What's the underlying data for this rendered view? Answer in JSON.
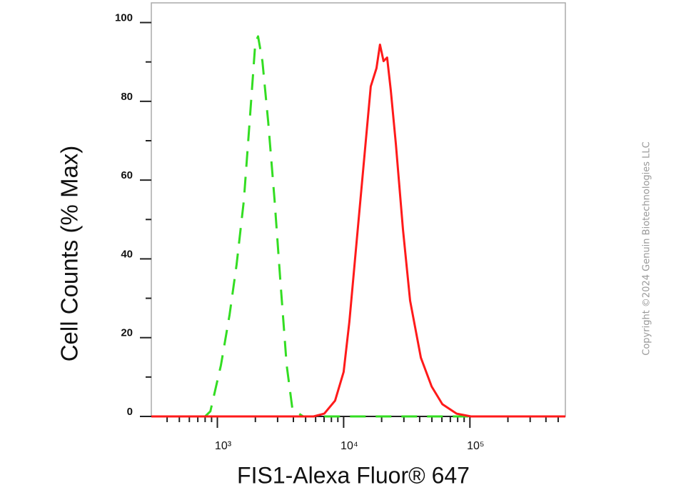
{
  "chart_data": {
    "type": "line",
    "x_label": "FIS1-Alexa Fluor® 647",
    "y_label": "Cell Counts (% Max)",
    "xscale": "log",
    "xlim": [
      300,
      570000
    ],
    "ylim": [
      0,
      105
    ],
    "xticks": [
      {
        "value": 1000,
        "label": "10³"
      },
      {
        "value": 10000,
        "label": "10⁴"
      },
      {
        "value": 100000,
        "label": "10⁵"
      }
    ],
    "xminorticks": [
      400,
      500,
      600,
      700,
      800,
      900,
      2000,
      3000,
      4000,
      5000,
      6000,
      7000,
      8000,
      9000,
      20000,
      30000,
      40000,
      50000,
      60000,
      70000,
      80000,
      90000,
      200000,
      300000,
      400000,
      500000
    ],
    "yticks": [
      0,
      20,
      40,
      60,
      80,
      100
    ],
    "yminorticks": [
      10,
      30,
      50,
      70,
      90
    ],
    "series": [
      {
        "color": "#33dd22",
        "line_style": "dashed",
        "x": [
          300,
          800,
          880,
          1067,
          1250,
          1420,
          1620,
          1800,
          1995,
          2100,
          2275,
          2525,
          2840,
          3150,
          3540,
          3935,
          4780,
          570000
        ],
        "values": [
          0,
          0,
          1.3,
          13,
          25.8,
          38.5,
          54.8,
          74.8,
          94.7,
          96.5,
          90.2,
          74.8,
          54.8,
          34.8,
          13,
          1.8,
          0,
          0
        ]
      },
      {
        "color": "#ff1a1a",
        "line_style": "solid",
        "x": [
          300,
          5780,
          7030,
          8550,
          10000,
          11100,
          12640,
          14400,
          16400,
          18200,
          19400,
          20700,
          22100,
          23600,
          25900,
          29500,
          33600,
          40900,
          49800,
          60500,
          78500,
          102000,
          570000
        ],
        "values": [
          0,
          0,
          0.7,
          4,
          11.3,
          24,
          44,
          63.9,
          83.8,
          88.4,
          94.4,
          90.2,
          91.1,
          82.9,
          69.3,
          47.5,
          29.4,
          14.9,
          7.6,
          3.1,
          0.7,
          0,
          0
        ]
      }
    ]
  },
  "copyright": "Copyright ©2024 Genuin Biotechnologies LLC"
}
